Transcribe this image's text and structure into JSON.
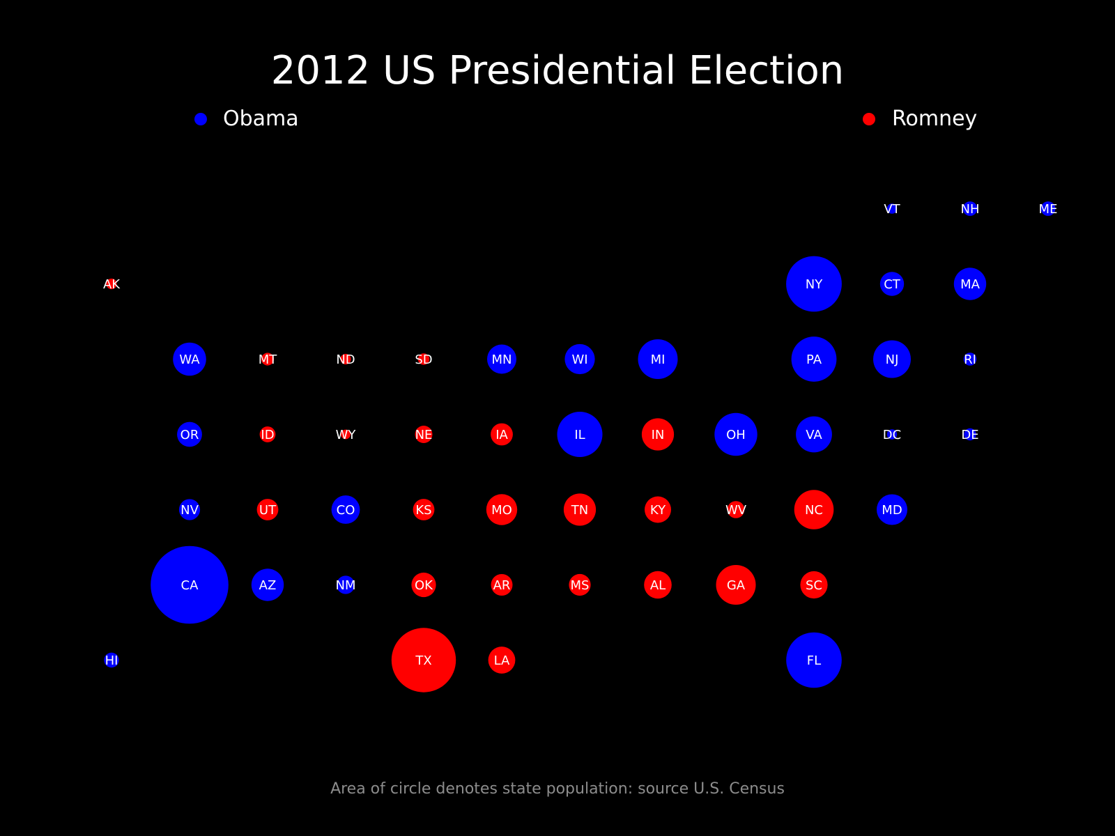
{
  "chart_data": {
    "type": "scatter",
    "title": "2012 US Presidential Election",
    "note": "Area of circle denotes state population: source U.S. Census",
    "legend": [
      {
        "name": "Obama",
        "color": "#0000ff"
      },
      {
        "name": "Romney",
        "color": "#ff0000"
      }
    ],
    "colors": {
      "Obama": "#0000ff",
      "Romney": "#ff0000",
      "background": "#000000"
    },
    "states": [
      {
        "abbr": "VT",
        "col": 10,
        "row": 0,
        "winner": "Obama",
        "pop_m": 0.63
      },
      {
        "abbr": "NH",
        "col": 11,
        "row": 0,
        "winner": "Obama",
        "pop_m": 1.32
      },
      {
        "abbr": "ME",
        "col": 12,
        "row": 0,
        "winner": "Obama",
        "pop_m": 1.33
      },
      {
        "abbr": "AK",
        "col": 0,
        "row": 1,
        "winner": "Romney",
        "pop_m": 0.71
      },
      {
        "abbr": "NY",
        "col": 9,
        "row": 1,
        "winner": "Obama",
        "pop_m": 19.4
      },
      {
        "abbr": "CT",
        "col": 10,
        "row": 1,
        "winner": "Obama",
        "pop_m": 3.6
      },
      {
        "abbr": "MA",
        "col": 11,
        "row": 1,
        "winner": "Obama",
        "pop_m": 6.6
      },
      {
        "abbr": "WA",
        "col": 1,
        "row": 2,
        "winner": "Obama",
        "pop_m": 6.9
      },
      {
        "abbr": "MT",
        "col": 2,
        "row": 2,
        "winner": "Romney",
        "pop_m": 1.0
      },
      {
        "abbr": "ND",
        "col": 3,
        "row": 2,
        "winner": "Romney",
        "pop_m": 0.7
      },
      {
        "abbr": "SD",
        "col": 4,
        "row": 2,
        "winner": "Romney",
        "pop_m": 0.83
      },
      {
        "abbr": "MN",
        "col": 5,
        "row": 2,
        "winner": "Obama",
        "pop_m": 5.4
      },
      {
        "abbr": "WI",
        "col": 6,
        "row": 2,
        "winner": "Obama",
        "pop_m": 5.7
      },
      {
        "abbr": "MI",
        "col": 7,
        "row": 2,
        "winner": "Obama",
        "pop_m": 9.9
      },
      {
        "abbr": "PA",
        "col": 9,
        "row": 2,
        "winner": "Obama",
        "pop_m": 12.8
      },
      {
        "abbr": "NJ",
        "col": 10,
        "row": 2,
        "winner": "Obama",
        "pop_m": 8.9
      },
      {
        "abbr": "RI",
        "col": 11,
        "row": 2,
        "winner": "Obama",
        "pop_m": 1.05
      },
      {
        "abbr": "OR",
        "col": 1,
        "row": 3,
        "winner": "Obama",
        "pop_m": 3.9
      },
      {
        "abbr": "ID",
        "col": 2,
        "row": 3,
        "winner": "Romney",
        "pop_m": 1.6
      },
      {
        "abbr": "WY",
        "col": 3,
        "row": 3,
        "winner": "Romney",
        "pop_m": 0.58
      },
      {
        "abbr": "NE",
        "col": 4,
        "row": 3,
        "winner": "Romney",
        "pop_m": 1.9
      },
      {
        "abbr": "IA",
        "col": 5,
        "row": 3,
        "winner": "Romney",
        "pop_m": 3.1
      },
      {
        "abbr": "IL",
        "col": 6,
        "row": 3,
        "winner": "Obama",
        "pop_m": 12.9
      },
      {
        "abbr": "IN",
        "col": 7,
        "row": 3,
        "winner": "Romney",
        "pop_m": 6.5
      },
      {
        "abbr": "OH",
        "col": 8,
        "row": 3,
        "winner": "Obama",
        "pop_m": 11.5
      },
      {
        "abbr": "VA",
        "col": 9,
        "row": 3,
        "winner": "Obama",
        "pop_m": 8.2
      },
      {
        "abbr": "DC",
        "col": 10,
        "row": 3,
        "winner": "Obama",
        "pop_m": 0.63
      },
      {
        "abbr": "DE",
        "col": 11,
        "row": 3,
        "winner": "Obama",
        "pop_m": 0.92
      },
      {
        "abbr": "NV",
        "col": 1,
        "row": 4,
        "winner": "Obama",
        "pop_m": 2.8
      },
      {
        "abbr": "UT",
        "col": 2,
        "row": 4,
        "winner": "Romney",
        "pop_m": 2.9
      },
      {
        "abbr": "CO",
        "col": 3,
        "row": 4,
        "winner": "Obama",
        "pop_m": 5.1
      },
      {
        "abbr": "KS",
        "col": 4,
        "row": 4,
        "winner": "Romney",
        "pop_m": 2.9
      },
      {
        "abbr": "MO",
        "col": 5,
        "row": 4,
        "winner": "Romney",
        "pop_m": 6.0
      },
      {
        "abbr": "TN",
        "col": 6,
        "row": 4,
        "winner": "Romney",
        "pop_m": 6.5
      },
      {
        "abbr": "KY",
        "col": 7,
        "row": 4,
        "winner": "Romney",
        "pop_m": 4.4
      },
      {
        "abbr": "WV",
        "col": 8,
        "row": 4,
        "winner": "Romney",
        "pop_m": 1.85
      },
      {
        "abbr": "NC",
        "col": 9,
        "row": 4,
        "winner": "Romney",
        "pop_m": 9.8
      },
      {
        "abbr": "MD",
        "col": 10,
        "row": 4,
        "winner": "Obama",
        "pop_m": 5.9
      },
      {
        "abbr": "CA",
        "col": 1,
        "row": 5,
        "winner": "Obama",
        "pop_m": 38.0
      },
      {
        "abbr": "AZ",
        "col": 2,
        "row": 5,
        "winner": "Obama",
        "pop_m": 6.6
      },
      {
        "abbr": "NM",
        "col": 3,
        "row": 5,
        "winner": "Obama",
        "pop_m": 2.1
      },
      {
        "abbr": "OK",
        "col": 4,
        "row": 5,
        "winner": "Romney",
        "pop_m": 3.8
      },
      {
        "abbr": "AR",
        "col": 5,
        "row": 5,
        "winner": "Romney",
        "pop_m": 2.95
      },
      {
        "abbr": "MS",
        "col": 6,
        "row": 5,
        "winner": "Romney",
        "pop_m": 2.98
      },
      {
        "abbr": "AL",
        "col": 7,
        "row": 5,
        "winner": "Romney",
        "pop_m": 4.8
      },
      {
        "abbr": "GA",
        "col": 8,
        "row": 5,
        "winner": "Romney",
        "pop_m": 9.9
      },
      {
        "abbr": "SC",
        "col": 9,
        "row": 5,
        "winner": "Romney",
        "pop_m": 4.7
      },
      {
        "abbr": "HI",
        "col": 0,
        "row": 6,
        "winner": "Obama",
        "pop_m": 1.4
      },
      {
        "abbr": "TX",
        "col": 4,
        "row": 6,
        "winner": "Romney",
        "pop_m": 26.1
      },
      {
        "abbr": "LA",
        "col": 5,
        "row": 6,
        "winner": "Romney",
        "pop_m": 4.6
      },
      {
        "abbr": "FL",
        "col": 9,
        "row": 6,
        "winner": "Obama",
        "pop_m": 19.3
      }
    ]
  }
}
